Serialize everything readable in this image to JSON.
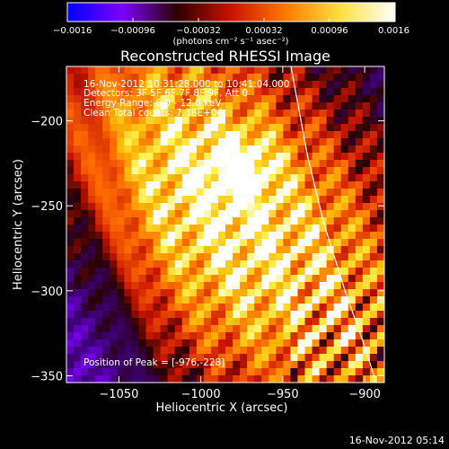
{
  "chart_data": {
    "type": "heatmap",
    "title": "Reconstructed RHESSI Image",
    "xlabel": "Heliocentric X (arcsec)",
    "ylabel": "Heliocentric Y (arcsec)",
    "xlim": [
      -1082,
      -888
    ],
    "ylim": [
      -354,
      -168
    ],
    "x_ticks": [
      {
        "value": -1050,
        "label": "−1050"
      },
      {
        "value": -1000,
        "label": "−1000"
      },
      {
        "value": -950,
        "label": "−950"
      },
      {
        "value": -900,
        "label": "−900"
      }
    ],
    "y_ticks": [
      {
        "value": -200,
        "label": "−200"
      },
      {
        "value": -250,
        "label": "−250"
      },
      {
        "value": -300,
        "label": "−300"
      },
      {
        "value": -350,
        "label": "−350"
      }
    ],
    "colorbar": {
      "min": -0.0016,
      "max": 0.0016,
      "ticks": [
        {
          "value": -0.0016,
          "label": "−0.0016"
        },
        {
          "value": -0.00096,
          "label": "−0.00096"
        },
        {
          "value": -0.00032,
          "label": "−0.00032"
        },
        {
          "value": 0.00032,
          "label": "0.00032"
        },
        {
          "value": 0.00096,
          "label": "0.00096"
        },
        {
          "value": 0.0016,
          "label": "0.0016"
        }
      ],
      "unit_label": "(photons cm⁻² s⁻¹ asec⁻²)",
      "colors": [
        "#0000ff",
        "#7d00ff",
        "#2a0000",
        "#cc1100",
        "#ff7a00",
        "#ffe040",
        "#ffffff"
      ]
    },
    "annotations": [
      "16-Nov-2012 10:31:28.000 to 10:41:04.000",
      "Detectors: 3F 5F 6F 7F 8F 9F, Att 0",
      "Energy Range: 6.0 - 12.0 keV",
      "Clean     Total counts: 7.38E+04"
    ],
    "peak_label": "Position of Peak = [-976,-228]",
    "peak": {
      "x": -976,
      "y": -228
    },
    "limb_curve": [
      {
        "x": -945,
        "y": -168
      },
      {
        "x": -935,
        "y": -220
      },
      {
        "x": -925,
        "y": -260
      },
      {
        "x": -912,
        "y": -300
      },
      {
        "x": -901,
        "y": -330
      },
      {
        "x": -893,
        "y": -354
      }
    ],
    "grid": false
  },
  "footer": {
    "timestamp": "16-Nov-2012 05:14"
  }
}
